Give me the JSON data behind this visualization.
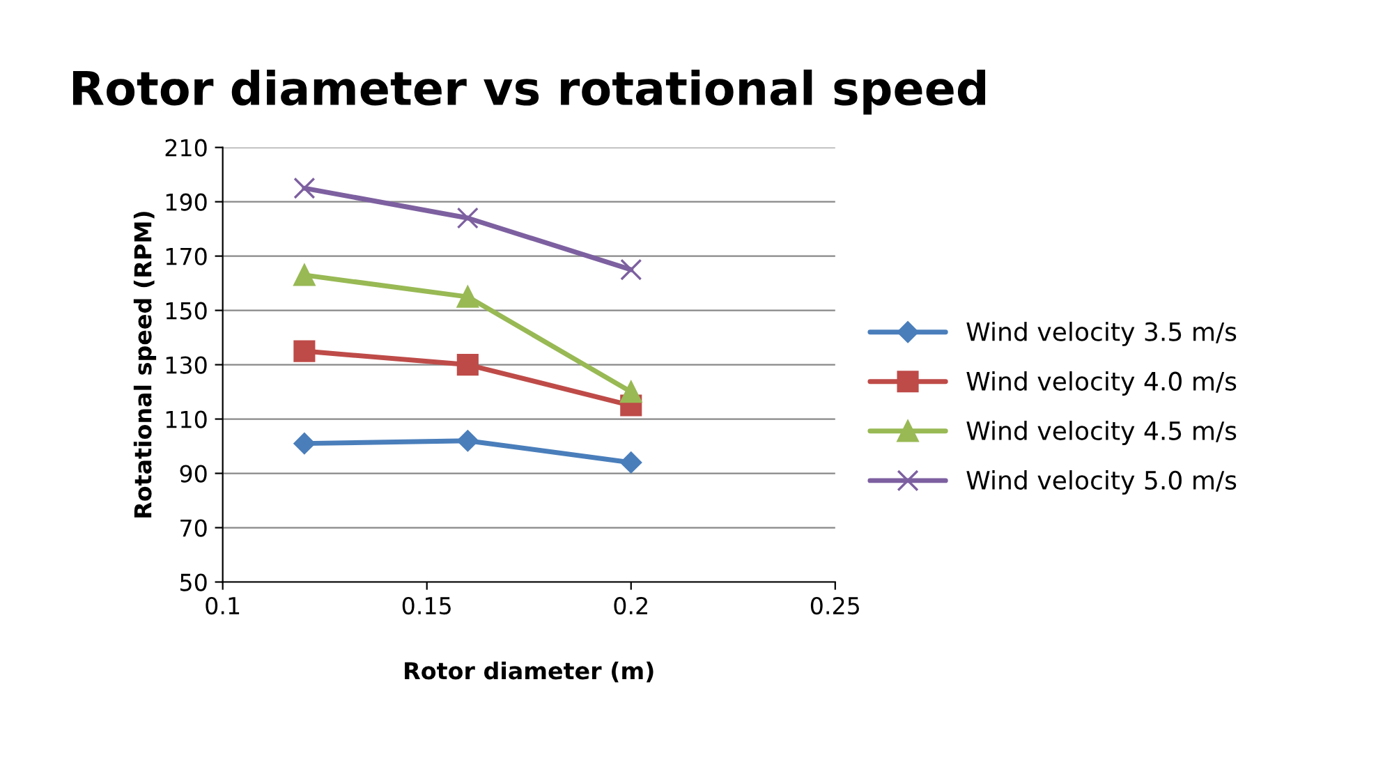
{
  "chart_data": {
    "type": "line",
    "title": "Rotor diameter vs rotational speed",
    "xlabel": "Rotor diameter (m)",
    "ylabel": "Rotational speed (RPM)",
    "x": [
      0.12,
      0.16,
      0.2
    ],
    "series": [
      {
        "name": "Wind velocity 3.5 m/s",
        "color": "#4a7ebb",
        "marker": "diamond",
        "values": [
          101,
          102,
          94
        ]
      },
      {
        "name": "Wind velocity 4.0 m/s",
        "color": "#be4b48",
        "marker": "square",
        "values": [
          135,
          130,
          115
        ]
      },
      {
        "name": "Wind velocity 4.5 m/s",
        "color": "#98b954",
        "marker": "triangle",
        "values": [
          163,
          155,
          120
        ]
      },
      {
        "name": "Wind velocity 5.0 m/s",
        "color": "#7d60a0",
        "marker": "cross",
        "values": [
          195,
          184,
          165
        ]
      }
    ],
    "xlim": [
      0.1,
      0.25
    ],
    "xticks": [
      0.1,
      0.15,
      0.2,
      0.25
    ],
    "ylim": [
      50,
      210
    ],
    "yticks": [
      50,
      70,
      90,
      110,
      130,
      150,
      170,
      190,
      210
    ],
    "grid": "y",
    "legend": "right"
  }
}
